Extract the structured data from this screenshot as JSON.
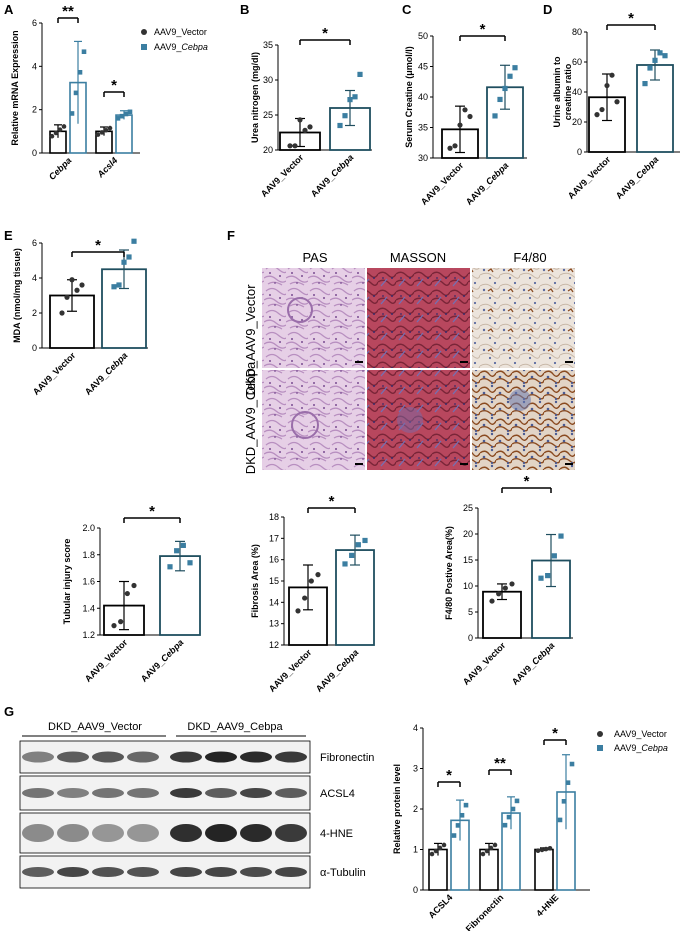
{
  "colors": {
    "vector": "#333333",
    "cebpa": "#3b7ea1",
    "bar_cebpa": "#1f4e5f",
    "bar_vector": "#000000"
  },
  "legend": {
    "vector": "AAV9_Vector",
    "cebpa_prefix": "AAV9_",
    "cebpa_italic": "Cebpa"
  },
  "xcats": {
    "vector": "AAV9_Vector",
    "cebpa": "AAV9_Cebpa"
  },
  "panels": {
    "A": {
      "letter": "A",
      "ylabel": "Relative mRNA Expression",
      "genes": [
        "Cebpa",
        "Acsl4"
      ],
      "yticks": [
        "0",
        "2",
        "4",
        "6"
      ],
      "stars": [
        "**",
        "*"
      ]
    },
    "B": {
      "letter": "B",
      "ylabel": "Urea nitrogen (mg/dl)",
      "yticks": [
        "20",
        "25",
        "30",
        "35"
      ],
      "star": "*"
    },
    "C": {
      "letter": "C",
      "ylabel": "Serum Creatine  (μmol/l)",
      "yticks": [
        "30",
        "35",
        "40",
        "45",
        "50"
      ],
      "star": "*"
    },
    "D": {
      "letter": "D",
      "ylabel1": "Urine albumin to",
      "ylabel2": "creatine ratio",
      "yticks": [
        "0",
        "20",
        "40",
        "60",
        "80"
      ],
      "star": "*"
    },
    "E": {
      "letter": "E",
      "ylabel": "MDA (nmol/mg tissue)",
      "yticks": [
        "0",
        "2",
        "4",
        "6"
      ],
      "star": "*"
    },
    "F": {
      "letter": "F",
      "stains": [
        "PAS",
        "MASSON",
        "F4/80"
      ],
      "row_labels": [
        "DKD_AAV9_Vector",
        "DKD_AAV9_Cebpa"
      ]
    },
    "Tub": {
      "ylabel": "Tubular injury score",
      "yticks": [
        "1.2",
        "1.4",
        "1.6",
        "1.8",
        "2.0"
      ],
      "star": "*"
    },
    "Fib": {
      "ylabel": "Fibrosis Area (%)",
      "yticks": [
        "12",
        "13",
        "14",
        "15",
        "16",
        "17",
        "18"
      ],
      "star": "*"
    },
    "F480": {
      "ylabel": "F4/80 Postive Area(%)",
      "yticks": [
        "0",
        "5",
        "10",
        "15",
        "20",
        "25"
      ],
      "star": "*"
    },
    "G": {
      "letter": "G",
      "group_vector": "DKD_AAV9_Vector",
      "group_cebpa": "DKD_AAV9_Cebpa",
      "blots": [
        "Fibronectin",
        "ACSL4",
        "4-HNE",
        "α-Tubulin"
      ],
      "ylabel": "Relative protein level",
      "proteins": [
        "ACSL4",
        "Fibronectin",
        "4-HNE"
      ],
      "yticks": [
        "0",
        "1",
        "2",
        "3",
        "4"
      ],
      "stars": [
        "*",
        "**",
        "*"
      ]
    }
  },
  "chart_data": [
    {
      "type": "bar",
      "panel": "A",
      "categories": [
        "Cebpa",
        "Acsl4"
      ],
      "series": [
        {
          "name": "AAV9_Vector",
          "values": [
            1.0,
            1.0
          ],
          "sd": [
            0.3,
            0.2
          ]
        },
        {
          "name": "AAV9_Cebpa",
          "values": [
            3.25,
            1.75
          ],
          "sd": [
            1.9,
            0.2
          ]
        }
      ],
      "ylim": [
        0,
        6
      ],
      "ylabel": "Relative mRNA Expression"
    },
    {
      "type": "bar",
      "panel": "B",
      "categories": [
        "AAV9_Vector",
        "AAV9_Cebpa"
      ],
      "values": [
        22.5,
        26.0
      ],
      "sd": [
        2.0,
        2.5
      ],
      "points": [
        [
          20.6,
          20.6,
          24.3,
          22.8,
          23.3
        ],
        [
          23.5,
          24.9,
          27.2,
          27.6,
          30.8
        ]
      ],
      "ylim": [
        20,
        35
      ],
      "ylabel": "Urea nitrogen (mg/dl)"
    },
    {
      "type": "bar",
      "panel": "C",
      "categories": [
        "AAV9_Vector",
        "AAV9_Cebpa"
      ],
      "values": [
        34.7,
        41.6
      ],
      "sd": [
        3.8,
        3.6
      ],
      "points": [
        [
          31.6,
          32.0,
          35.4,
          37.9,
          36.8
        ],
        [
          36.9,
          39.6,
          41.4,
          43.4,
          44.8
        ]
      ],
      "ylim": [
        30,
        50
      ],
      "ylabel": "Serum Creatine  (μmol/l)"
    },
    {
      "type": "bar",
      "panel": "D",
      "categories": [
        "AAV9_Vector",
        "AAV9_Cebpa"
      ],
      "values": [
        36.5,
        58.0
      ],
      "sd": [
        15.5,
        10.0
      ],
      "points": [
        [
          24.9,
          28.3,
          44.3,
          51.2,
          33.5
        ],
        [
          45.6,
          56.0,
          61.1,
          66.1,
          64.2
        ]
      ],
      "ylim": [
        0,
        80
      ],
      "ylabel": "Urine albumin to creatine ratio"
    },
    {
      "type": "bar",
      "panel": "E",
      "categories": [
        "AAV9_Vector",
        "AAV9_Cebpa"
      ],
      "values": [
        3.0,
        4.5
      ],
      "sd": [
        0.9,
        1.1
      ],
      "points": [
        [
          2.0,
          2.9,
          3.9,
          3.3,
          3.6
        ],
        [
          3.5,
          3.6,
          4.9,
          5.2,
          6.1
        ]
      ],
      "ylim": [
        0,
        6
      ],
      "ylabel": "MDA (nmol/mg tissue)"
    },
    {
      "type": "bar",
      "panel": "Tub",
      "categories": [
        "AAV9_Vector",
        "AAV9_Cebpa"
      ],
      "values": [
        1.42,
        1.79
      ],
      "sd": [
        0.18,
        0.11
      ],
      "points": [
        [
          1.27,
          1.3,
          1.51,
          1.57
        ],
        [
          1.71,
          1.83,
          1.87,
          1.74
        ]
      ],
      "ylim": [
        1.2,
        2.0
      ],
      "ylabel": "Tubular injury score"
    },
    {
      "type": "bar",
      "panel": "Fib",
      "categories": [
        "AAV9_Vector",
        "AAV9_Cebpa"
      ],
      "values": [
        14.7,
        16.45
      ],
      "sd": [
        1.05,
        0.7
      ],
      "points": [
        [
          13.6,
          14.2,
          15.0,
          15.3
        ],
        [
          15.8,
          16.2,
          16.7,
          16.9
        ]
      ],
      "ylim": [
        12,
        18
      ],
      "ylabel": "Fibrosis Area (%)"
    },
    {
      "type": "bar",
      "panel": "F480",
      "categories": [
        "AAV9_Vector",
        "AAV9_Cebpa"
      ],
      "values": [
        8.9,
        14.9
      ],
      "sd": [
        1.5,
        5.0
      ],
      "points": [
        [
          7.1,
          8.5,
          9.6,
          10.4
        ],
        [
          11.5,
          12.0,
          15.8,
          19.6
        ]
      ],
      "ylim": [
        0,
        25
      ],
      "ylabel": "F4/80 Postive Area(%)"
    },
    {
      "type": "bar",
      "panel": "G",
      "categories": [
        "ACSL4",
        "Fibronectin",
        "4-HNE"
      ],
      "series": [
        {
          "name": "AAV9_Vector",
          "values": [
            1.0,
            1.0,
            1.0
          ],
          "sd": [
            0.15,
            0.15,
            0.04
          ]
        },
        {
          "name": "AAV9_Cebpa",
          "values": [
            1.72,
            1.9,
            2.42
          ],
          "sd": [
            0.5,
            0.4,
            0.92
          ]
        }
      ],
      "ylim": [
        0,
        4
      ],
      "ylabel": "Relative protein level"
    }
  ]
}
